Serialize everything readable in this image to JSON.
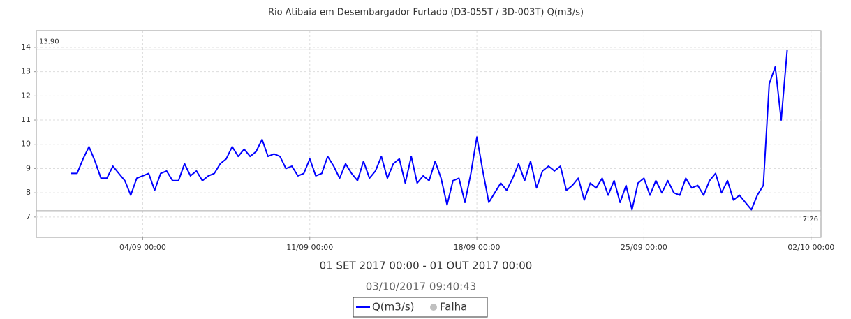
{
  "chart_data": {
    "type": "line",
    "title": "Rio Atibaia em Desembargador Furtado (D3-055T / 3D-003T) Q(m3/s)",
    "subtitle": "01 SET 2017 00:00 - 01 OUT 2017 00:00",
    "timestamp": "03/10/2017 09:40:43",
    "x": [
      "01/09 00:00",
      "01/09 06:00",
      "01/09 12:00",
      "01/09 18:00",
      "02/09 00:00",
      "02/09 06:00",
      "02/09 12:00",
      "02/09 18:00",
      "03/09 00:00",
      "03/09 06:00",
      "03/09 12:00",
      "03/09 18:00",
      "04/09 00:00",
      "04/09 06:00",
      "04/09 12:00",
      "04/09 18:00",
      "05/09 00:00",
      "05/09 06:00",
      "05/09 12:00",
      "05/09 18:00",
      "06/09 00:00",
      "06/09 06:00",
      "06/09 12:00",
      "06/09 18:00",
      "07/09 00:00",
      "07/09 06:00",
      "07/09 12:00",
      "07/09 18:00",
      "08/09 00:00",
      "08/09 06:00",
      "08/09 12:00",
      "08/09 18:00",
      "09/09 00:00",
      "09/09 06:00",
      "09/09 12:00",
      "09/09 18:00",
      "10/09 00:00",
      "10/09 06:00",
      "10/09 12:00",
      "10/09 18:00",
      "11/09 00:00",
      "11/09 06:00",
      "11/09 12:00",
      "11/09 18:00",
      "12/09 00:00",
      "12/09 06:00",
      "12/09 12:00",
      "12/09 18:00",
      "13/09 00:00",
      "13/09 06:00",
      "13/09 12:00",
      "13/09 18:00",
      "14/09 00:00",
      "14/09 06:00",
      "14/09 12:00",
      "14/09 18:00",
      "15/09 00:00",
      "15/09 06:00",
      "15/09 12:00",
      "15/09 18:00",
      "16/09 00:00",
      "16/09 06:00",
      "16/09 12:00",
      "16/09 18:00",
      "17/09 00:00",
      "17/09 06:00",
      "17/09 12:00",
      "17/09 18:00",
      "18/09 00:00",
      "18/09 06:00",
      "18/09 12:00",
      "18/09 18:00",
      "19/09 00:00",
      "19/09 06:00",
      "19/09 12:00",
      "19/09 18:00",
      "20/09 00:00",
      "20/09 06:00",
      "20/09 12:00",
      "20/09 18:00",
      "21/09 00:00",
      "21/09 06:00",
      "21/09 12:00",
      "21/09 18:00",
      "22/09 00:00",
      "22/09 06:00",
      "22/09 12:00",
      "22/09 18:00",
      "23/09 00:00",
      "23/09 06:00",
      "23/09 12:00",
      "23/09 18:00",
      "24/09 00:00",
      "24/09 06:00",
      "24/09 12:00",
      "24/09 18:00",
      "25/09 00:00",
      "25/09 06:00",
      "25/09 12:00",
      "25/09 18:00",
      "26/09 00:00",
      "26/09 06:00",
      "26/09 12:00",
      "26/09 18:00",
      "27/09 00:00",
      "27/09 06:00",
      "27/09 12:00",
      "27/09 18:00",
      "28/09 00:00",
      "28/09 06:00",
      "28/09 12:00",
      "28/09 18:00",
      "29/09 00:00",
      "29/09 06:00",
      "29/09 12:00",
      "29/09 18:00",
      "30/09 00:00",
      "30/09 06:00",
      "30/09 12:00",
      "30/09 18:00",
      "01/10 00:00"
    ],
    "series": [
      {
        "name": "Q(m3/s)",
        "color": "#0000ff",
        "values": [
          8.8,
          8.8,
          9.4,
          9.9,
          9.3,
          8.6,
          8.6,
          9.1,
          8.8,
          8.5,
          7.9,
          8.6,
          8.7,
          8.8,
          8.1,
          8.8,
          8.9,
          8.5,
          8.5,
          9.2,
          8.7,
          8.9,
          8.5,
          8.7,
          8.8,
          9.2,
          9.4,
          9.9,
          9.5,
          9.8,
          9.5,
          9.7,
          10.2,
          9.5,
          9.6,
          9.5,
          9.0,
          9.1,
          8.7,
          8.8,
          9.4,
          8.7,
          8.8,
          9.5,
          9.1,
          8.6,
          9.2,
          8.8,
          8.5,
          9.3,
          8.6,
          8.9,
          9.5,
          8.6,
          9.2,
          9.4,
          8.4,
          9.5,
          8.4,
          8.7,
          8.5,
          9.3,
          8.6,
          7.5,
          8.5,
          8.6,
          7.6,
          8.8,
          10.3,
          8.9,
          7.6,
          8.0,
          8.4,
          8.1,
          8.6,
          9.2,
          8.5,
          9.3,
          8.2,
          8.9,
          9.1,
          8.9,
          9.1,
          8.1,
          8.3,
          8.6,
          7.7,
          8.4,
          8.2,
          8.6,
          7.9,
          8.5,
          7.6,
          8.3,
          7.3,
          8.4,
          8.6,
          7.9,
          8.5,
          8.0,
          8.5,
          8.0,
          7.9,
          8.6,
          8.2,
          8.3,
          7.9,
          8.5,
          8.8,
          8.0,
          8.5,
          7.7,
          7.9,
          7.6,
          7.3,
          7.9,
          8.3,
          12.5,
          13.2,
          11.0,
          13.9
        ]
      }
    ],
    "status_legend": {
      "name": "Falha",
      "color": "#c0c0c0"
    },
    "reference_lines": [
      {
        "value": 13.9,
        "label": "13.90",
        "position": "left"
      },
      {
        "value": 7.26,
        "label": "7.26",
        "position": "right"
      }
    ],
    "xlim": [
      "30/08 13:00",
      "02/10 10:00"
    ],
    "xticks": [
      "04/09 00:00",
      "11/09 00:00",
      "18/09 00:00",
      "25/09 00:00",
      "02/10 00:00"
    ],
    "ylim": [
      6.16,
      14.69
    ],
    "yticks": [
      7,
      8,
      9,
      10,
      11,
      12,
      13,
      14
    ],
    "grid": true
  }
}
